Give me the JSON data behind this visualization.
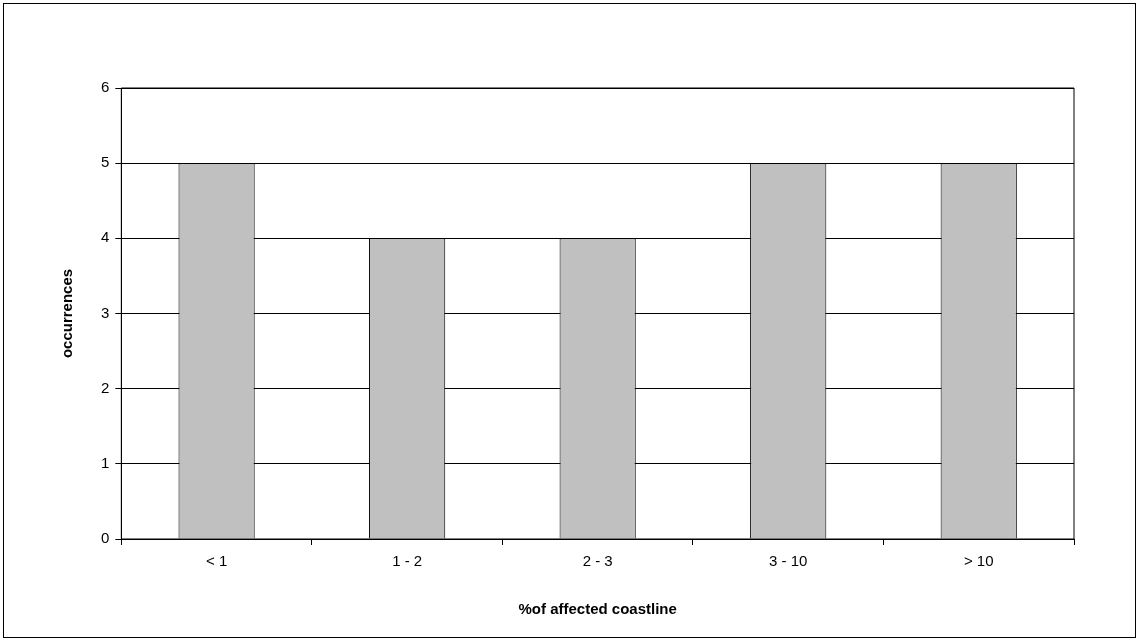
{
  "chart_data": {
    "type": "bar",
    "xlabel": "%of affected coastline",
    "ylabel": "occurrences",
    "categories": [
      "< 1",
      "1 - 2",
      "2 - 3",
      "3 - 10",
      "> 10"
    ],
    "values": [
      5,
      4,
      4,
      5,
      5
    ],
    "color": "#c0c0c0",
    "ylim": [
      0,
      6
    ],
    "yticks": [
      0,
      1,
      2,
      3,
      4,
      5,
      6
    ],
    "grid": "y",
    "legend": false
  }
}
